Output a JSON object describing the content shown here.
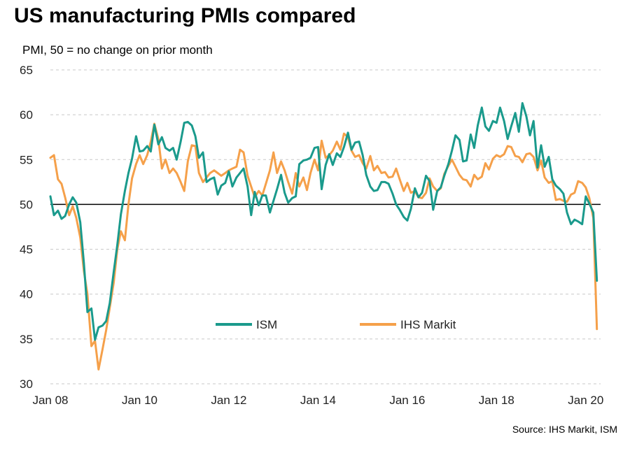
{
  "chart_data": {
    "type": "line",
    "title": "US manufacturing PMIs compared",
    "subtitle": "PMI, 50 = no change on prior month",
    "source": "Source: IHS Markit, ISM",
    "ylim": [
      30,
      65
    ],
    "yticks": [
      30,
      35,
      40,
      45,
      50,
      55,
      60,
      65
    ],
    "xlim": [
      2008.0,
      2020.333
    ],
    "xticks": [
      {
        "value": 2008,
        "label": "Jan 08"
      },
      {
        "value": 2010,
        "label": "Jan 10"
      },
      {
        "value": 2012,
        "label": "Jan 12"
      },
      {
        "value": 2014,
        "label": "Jan 14"
      },
      {
        "value": 2016,
        "label": "Jan 16"
      },
      {
        "value": 2018,
        "label": "Jan 18"
      },
      {
        "value": 2020,
        "label": "Jan 20"
      }
    ],
    "reference_line": 50,
    "grid": "horizontal-dashed",
    "legend_position": "bottom-center",
    "series": [
      {
        "name": "ISM",
        "color": "#1a9a8c",
        "points": [
          [
            2008.0,
            50.9
          ],
          [
            2008.08,
            48.8
          ],
          [
            2008.17,
            49.3
          ],
          [
            2008.25,
            48.4
          ],
          [
            2008.33,
            48.7
          ],
          [
            2008.42,
            50.0
          ],
          [
            2008.5,
            50.8
          ],
          [
            2008.58,
            50.2
          ],
          [
            2008.67,
            48.0
          ],
          [
            2008.75,
            43.5
          ],
          [
            2008.83,
            38.0
          ],
          [
            2008.92,
            38.4
          ],
          [
            2009.0,
            34.9
          ],
          [
            2009.08,
            36.3
          ],
          [
            2009.17,
            36.5
          ],
          [
            2009.25,
            37.0
          ],
          [
            2009.33,
            39.0
          ],
          [
            2009.42,
            42.5
          ],
          [
            2009.5,
            45.5
          ],
          [
            2009.58,
            48.9
          ],
          [
            2009.67,
            51.5
          ],
          [
            2009.75,
            53.5
          ],
          [
            2009.83,
            55.1
          ],
          [
            2009.92,
            57.6
          ],
          [
            2010.0,
            55.9
          ],
          [
            2010.08,
            56.0
          ],
          [
            2010.17,
            56.5
          ],
          [
            2010.25,
            55.9
          ],
          [
            2010.33,
            58.9
          ],
          [
            2010.42,
            56.7
          ],
          [
            2010.5,
            57.5
          ],
          [
            2010.58,
            56.3
          ],
          [
            2010.67,
            56.0
          ],
          [
            2010.75,
            56.3
          ],
          [
            2010.83,
            55.0
          ],
          [
            2010.92,
            57.0
          ],
          [
            2011.0,
            59.1
          ],
          [
            2011.08,
            59.2
          ],
          [
            2011.17,
            58.8
          ],
          [
            2011.25,
            57.6
          ],
          [
            2011.33,
            55.2
          ],
          [
            2011.42,
            55.8
          ],
          [
            2011.5,
            52.5
          ],
          [
            2011.58,
            52.8
          ],
          [
            2011.67,
            53.0
          ],
          [
            2011.75,
            51.1
          ],
          [
            2011.83,
            52.1
          ],
          [
            2011.92,
            52.4
          ],
          [
            2012.0,
            53.7
          ],
          [
            2012.08,
            52.0
          ],
          [
            2012.17,
            53.0
          ],
          [
            2012.25,
            53.5
          ],
          [
            2012.33,
            54.0
          ],
          [
            2012.42,
            52.0
          ],
          [
            2012.5,
            48.8
          ],
          [
            2012.58,
            51.4
          ],
          [
            2012.67,
            49.9
          ],
          [
            2012.75,
            51.0
          ],
          [
            2012.83,
            51.0
          ],
          [
            2012.92,
            49.1
          ],
          [
            2013.0,
            50.4
          ],
          [
            2013.08,
            51.7
          ],
          [
            2013.17,
            53.3
          ],
          [
            2013.25,
            51.3
          ],
          [
            2013.33,
            50.2
          ],
          [
            2013.42,
            50.7
          ],
          [
            2013.5,
            50.9
          ],
          [
            2013.58,
            54.5
          ],
          [
            2013.67,
            54.9
          ],
          [
            2013.75,
            55.0
          ],
          [
            2013.83,
            55.2
          ],
          [
            2013.92,
            56.3
          ],
          [
            2014.0,
            56.4
          ],
          [
            2014.08,
            51.7
          ],
          [
            2014.17,
            54.4
          ],
          [
            2014.25,
            55.6
          ],
          [
            2014.33,
            54.4
          ],
          [
            2014.42,
            55.7
          ],
          [
            2014.5,
            55.3
          ],
          [
            2014.58,
            56.4
          ],
          [
            2014.67,
            58.0
          ],
          [
            2014.75,
            56.1
          ],
          [
            2014.83,
            56.9
          ],
          [
            2014.92,
            57.0
          ],
          [
            2015.0,
            55.5
          ],
          [
            2015.08,
            53.3
          ],
          [
            2015.17,
            52.0
          ],
          [
            2015.25,
            51.5
          ],
          [
            2015.33,
            51.6
          ],
          [
            2015.42,
            52.5
          ],
          [
            2015.5,
            52.5
          ],
          [
            2015.58,
            52.3
          ],
          [
            2015.67,
            51.2
          ],
          [
            2015.75,
            50.0
          ],
          [
            2015.83,
            49.4
          ],
          [
            2015.92,
            48.6
          ],
          [
            2016.0,
            48.2
          ],
          [
            2016.08,
            49.5
          ],
          [
            2016.17,
            51.8
          ],
          [
            2016.25,
            50.8
          ],
          [
            2016.33,
            51.3
          ],
          [
            2016.42,
            53.2
          ],
          [
            2016.5,
            52.6
          ],
          [
            2016.58,
            49.4
          ],
          [
            2016.67,
            51.5
          ],
          [
            2016.75,
            51.9
          ],
          [
            2016.83,
            53.2
          ],
          [
            2016.92,
            54.5
          ],
          [
            2017.0,
            56.0
          ],
          [
            2017.08,
            57.7
          ],
          [
            2017.17,
            57.2
          ],
          [
            2017.25,
            54.8
          ],
          [
            2017.33,
            54.9
          ],
          [
            2017.42,
            57.8
          ],
          [
            2017.5,
            56.3
          ],
          [
            2017.58,
            58.8
          ],
          [
            2017.67,
            60.8
          ],
          [
            2017.75,
            58.7
          ],
          [
            2017.83,
            58.2
          ],
          [
            2017.92,
            59.3
          ],
          [
            2018.0,
            59.1
          ],
          [
            2018.08,
            60.8
          ],
          [
            2018.17,
            59.3
          ],
          [
            2018.25,
            57.3
          ],
          [
            2018.33,
            58.7
          ],
          [
            2018.42,
            60.2
          ],
          [
            2018.5,
            58.1
          ],
          [
            2018.58,
            61.3
          ],
          [
            2018.67,
            59.8
          ],
          [
            2018.75,
            57.7
          ],
          [
            2018.83,
            59.3
          ],
          [
            2018.92,
            54.1
          ],
          [
            2019.0,
            56.6
          ],
          [
            2019.08,
            54.2
          ],
          [
            2019.17,
            55.3
          ],
          [
            2019.25,
            52.8
          ],
          [
            2019.33,
            52.1
          ],
          [
            2019.42,
            51.7
          ],
          [
            2019.5,
            51.2
          ],
          [
            2019.58,
            49.1
          ],
          [
            2019.67,
            47.8
          ],
          [
            2019.75,
            48.3
          ],
          [
            2019.83,
            48.1
          ],
          [
            2019.92,
            47.8
          ],
          [
            2020.0,
            50.9
          ],
          [
            2020.08,
            50.1
          ],
          [
            2020.17,
            49.1
          ],
          [
            2020.25,
            41.5
          ]
        ]
      },
      {
        "name": "IHS Markit",
        "color": "#f5a04a",
        "points": [
          [
            2008.0,
            55.2
          ],
          [
            2008.08,
            55.5
          ],
          [
            2008.17,
            52.8
          ],
          [
            2008.25,
            52.3
          ],
          [
            2008.33,
            50.8
          ],
          [
            2008.42,
            48.8
          ],
          [
            2008.5,
            49.8
          ],
          [
            2008.58,
            48.5
          ],
          [
            2008.67,
            46.3
          ],
          [
            2008.75,
            42.6
          ],
          [
            2008.83,
            40.0
          ],
          [
            2008.92,
            34.2
          ],
          [
            2009.0,
            34.8
          ],
          [
            2009.08,
            31.6
          ],
          [
            2009.17,
            33.9
          ],
          [
            2009.25,
            36.0
          ],
          [
            2009.33,
            38.5
          ],
          [
            2009.42,
            41.3
          ],
          [
            2009.5,
            45.0
          ],
          [
            2009.58,
            47.0
          ],
          [
            2009.67,
            46.0
          ],
          [
            2009.75,
            50.0
          ],
          [
            2009.83,
            52.9
          ],
          [
            2009.92,
            54.5
          ],
          [
            2010.0,
            55.5
          ],
          [
            2010.08,
            54.5
          ],
          [
            2010.17,
            55.5
          ],
          [
            2010.25,
            57.0
          ],
          [
            2010.33,
            59.0
          ],
          [
            2010.42,
            57.3
          ],
          [
            2010.5,
            54.0
          ],
          [
            2010.58,
            55.0
          ],
          [
            2010.67,
            53.5
          ],
          [
            2010.75,
            54.0
          ],
          [
            2010.83,
            53.5
          ],
          [
            2010.92,
            52.5
          ],
          [
            2011.0,
            51.5
          ],
          [
            2011.08,
            54.8
          ],
          [
            2011.17,
            56.6
          ],
          [
            2011.25,
            56.5
          ],
          [
            2011.33,
            53.5
          ],
          [
            2011.42,
            52.5
          ],
          [
            2011.5,
            53.0
          ],
          [
            2011.58,
            53.5
          ],
          [
            2011.67,
            53.8
          ],
          [
            2011.75,
            53.5
          ],
          [
            2011.83,
            53.2
          ],
          [
            2011.92,
            53.5
          ],
          [
            2012.0,
            53.8
          ],
          [
            2012.08,
            54.0
          ],
          [
            2012.17,
            54.2
          ],
          [
            2012.25,
            56.1
          ],
          [
            2012.33,
            55.8
          ],
          [
            2012.42,
            53.2
          ],
          [
            2012.5,
            52.0
          ],
          [
            2012.58,
            50.8
          ],
          [
            2012.67,
            51.5
          ],
          [
            2012.75,
            51.0
          ],
          [
            2012.83,
            52.3
          ],
          [
            2012.92,
            53.8
          ],
          [
            2013.0,
            55.8
          ],
          [
            2013.08,
            53.5
          ],
          [
            2013.17,
            54.8
          ],
          [
            2013.25,
            53.8
          ],
          [
            2013.33,
            52.5
          ],
          [
            2013.42,
            51.2
          ],
          [
            2013.5,
            53.5
          ],
          [
            2013.58,
            52.0
          ],
          [
            2013.67,
            53.0
          ],
          [
            2013.75,
            51.6
          ],
          [
            2013.83,
            53.5
          ],
          [
            2013.92,
            55.0
          ],
          [
            2014.0,
            53.8
          ],
          [
            2014.08,
            57.1
          ],
          [
            2014.17,
            55.2
          ],
          [
            2014.25,
            55.5
          ],
          [
            2014.33,
            56.0
          ],
          [
            2014.42,
            57.0
          ],
          [
            2014.5,
            56.1
          ],
          [
            2014.58,
            57.9
          ],
          [
            2014.67,
            57.5
          ],
          [
            2014.75,
            56.0
          ],
          [
            2014.83,
            55.3
          ],
          [
            2014.92,
            55.5
          ],
          [
            2015.0,
            54.6
          ],
          [
            2015.08,
            54.0
          ],
          [
            2015.17,
            55.4
          ],
          [
            2015.25,
            53.8
          ],
          [
            2015.33,
            54.3
          ],
          [
            2015.42,
            53.5
          ],
          [
            2015.5,
            53.6
          ],
          [
            2015.58,
            53.0
          ],
          [
            2015.67,
            53.1
          ],
          [
            2015.75,
            54.0
          ],
          [
            2015.83,
            52.8
          ],
          [
            2015.92,
            51.5
          ],
          [
            2016.0,
            52.4
          ],
          [
            2016.08,
            51.3
          ],
          [
            2016.17,
            51.5
          ],
          [
            2016.25,
            50.8
          ],
          [
            2016.33,
            50.7
          ],
          [
            2016.42,
            51.3
          ],
          [
            2016.5,
            52.9
          ],
          [
            2016.58,
            52.0
          ],
          [
            2016.67,
            51.5
          ],
          [
            2016.75,
            51.8
          ],
          [
            2016.83,
            53.4
          ],
          [
            2016.92,
            54.3
          ],
          [
            2017.0,
            55.0
          ],
          [
            2017.08,
            54.2
          ],
          [
            2017.17,
            53.3
          ],
          [
            2017.25,
            52.8
          ],
          [
            2017.33,
            52.7
          ],
          [
            2017.42,
            52.0
          ],
          [
            2017.5,
            53.3
          ],
          [
            2017.58,
            52.8
          ],
          [
            2017.67,
            53.1
          ],
          [
            2017.75,
            54.6
          ],
          [
            2017.83,
            53.9
          ],
          [
            2017.92,
            55.1
          ],
          [
            2018.0,
            55.5
          ],
          [
            2018.08,
            55.3
          ],
          [
            2018.17,
            55.6
          ],
          [
            2018.25,
            56.5
          ],
          [
            2018.33,
            56.4
          ],
          [
            2018.42,
            55.4
          ],
          [
            2018.5,
            55.3
          ],
          [
            2018.58,
            54.7
          ],
          [
            2018.67,
            55.6
          ],
          [
            2018.75,
            55.7
          ],
          [
            2018.83,
            55.3
          ],
          [
            2018.92,
            53.8
          ],
          [
            2019.0,
            54.9
          ],
          [
            2019.08,
            53.0
          ],
          [
            2019.17,
            52.4
          ],
          [
            2019.25,
            52.6
          ],
          [
            2019.33,
            50.5
          ],
          [
            2019.42,
            50.6
          ],
          [
            2019.5,
            50.4
          ],
          [
            2019.58,
            50.3
          ],
          [
            2019.67,
            51.1
          ],
          [
            2019.75,
            51.3
          ],
          [
            2019.83,
            52.6
          ],
          [
            2019.92,
            52.4
          ],
          [
            2020.0,
            51.9
          ],
          [
            2020.08,
            50.7
          ],
          [
            2020.17,
            48.5
          ],
          [
            2020.25,
            36.1
          ]
        ]
      }
    ]
  }
}
